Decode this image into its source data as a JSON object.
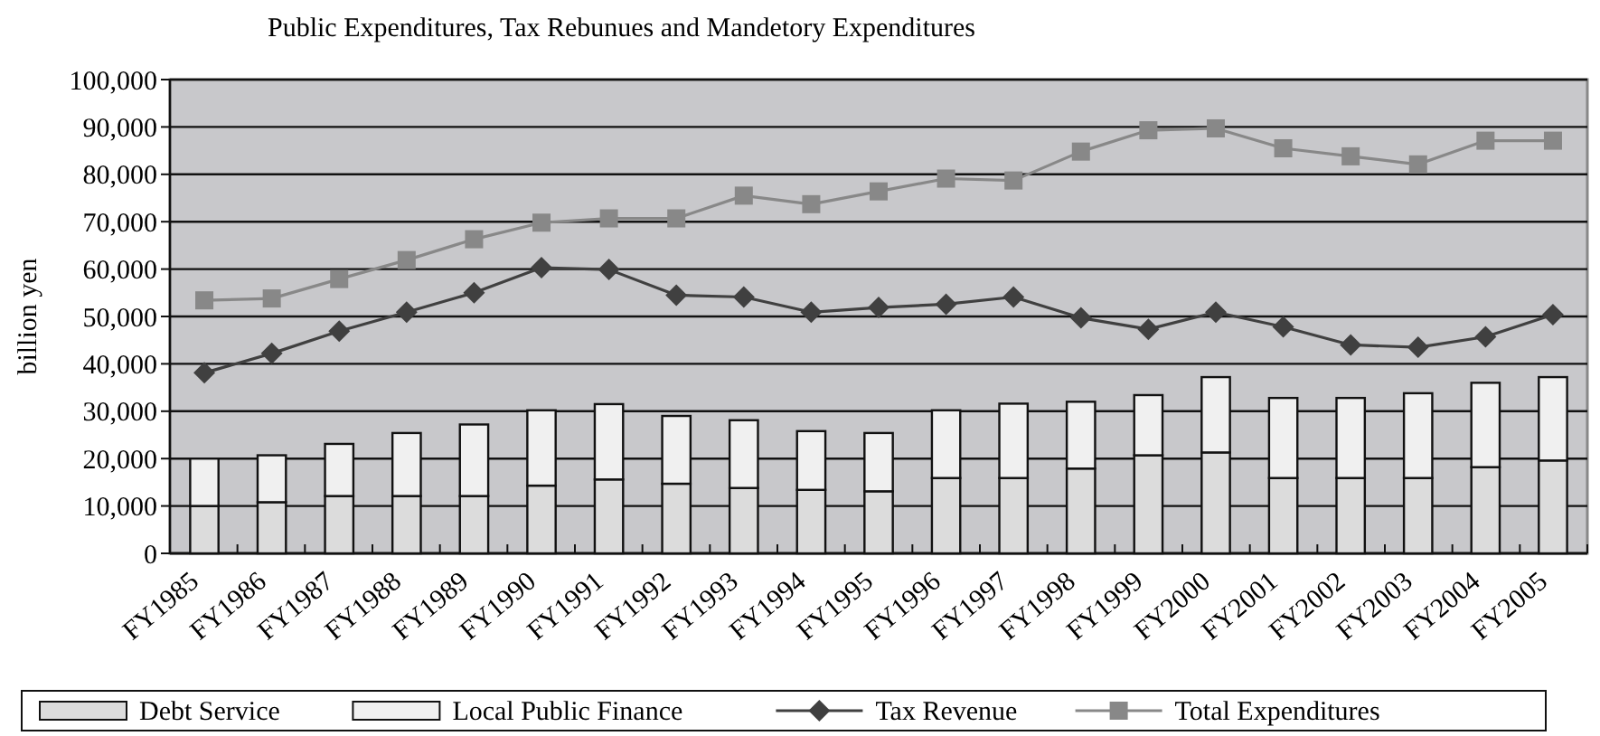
{
  "chart_data": {
    "type": "bar",
    "title": "Public Expenditures, Tax Rebunues and Mandetory Expenditures",
    "ylabel": "billion yen",
    "categories": [
      "FY1985",
      "FY1986",
      "FY1987",
      "FY1988",
      "FY1989",
      "FY1990",
      "FY1991",
      "FY1992",
      "FY1993",
      "FY1994",
      "FY1995",
      "FY1996",
      "FY1997",
      "FY1998",
      "FY1999",
      "FY2000",
      "FY2001",
      "FY2002",
      "FY2003",
      "FY2004",
      "FY2005"
    ],
    "stacked": true,
    "series": [
      {
        "name": "Debt Service",
        "color": "#dcdcdc",
        "values": [
          10000,
          10800,
          12100,
          12100,
          12100,
          14300,
          15600,
          14700,
          13800,
          13400,
          13100,
          15900,
          15900,
          17900,
          20700,
          21300,
          15900,
          15900,
          15900,
          18200,
          19600
        ]
      },
      {
        "name": "Local Public Finance",
        "color": "#f0f0f0",
        "values": [
          10000,
          9900,
          11000,
          13300,
          15100,
          15900,
          15900,
          14300,
          14300,
          12400,
          12300,
          14300,
          15700,
          14100,
          12700,
          15900,
          16900,
          16900,
          17900,
          17800,
          17600
        ]
      },
      {
        "name": "Tax Revenue",
        "type": "line",
        "color": "#404040",
        "marker": "diamond",
        "values": [
          38100,
          42200,
          46900,
          50900,
          55000,
          60300,
          59900,
          54500,
          54100,
          50900,
          51900,
          52600,
          54100,
          49700,
          47300,
          50900,
          47800,
          44000,
          43500,
          45700,
          50400
        ]
      },
      {
        "name": "Total Expenditures",
        "type": "line",
        "color": "#888888",
        "marker": "square",
        "values": [
          53400,
          53800,
          57900,
          61900,
          66300,
          69800,
          70700,
          70700,
          75500,
          73700,
          76400,
          79100,
          78700,
          84800,
          89300,
          89700,
          85500,
          83800,
          82100,
          87100,
          87100
        ]
      }
    ],
    "ylim": [
      0,
      100000
    ],
    "yticks": [
      {
        "value": 0,
        "label": "0"
      },
      {
        "value": 10000,
        "label": "10,000"
      },
      {
        "value": 20000,
        "label": "20,000"
      },
      {
        "value": 30000,
        "label": "30,000"
      },
      {
        "value": 40000,
        "label": "40,000"
      },
      {
        "value": 50000,
        "label": "50,000"
      },
      {
        "value": 60000,
        "label": "60,000"
      },
      {
        "value": 70000,
        "label": "70,000"
      },
      {
        "value": 80000,
        "label": "80,000"
      },
      {
        "value": 90000,
        "label": "90,000"
      },
      {
        "value": 100000,
        "label": "100,000"
      }
    ],
    "grid": "y",
    "legend": "bottom"
  }
}
